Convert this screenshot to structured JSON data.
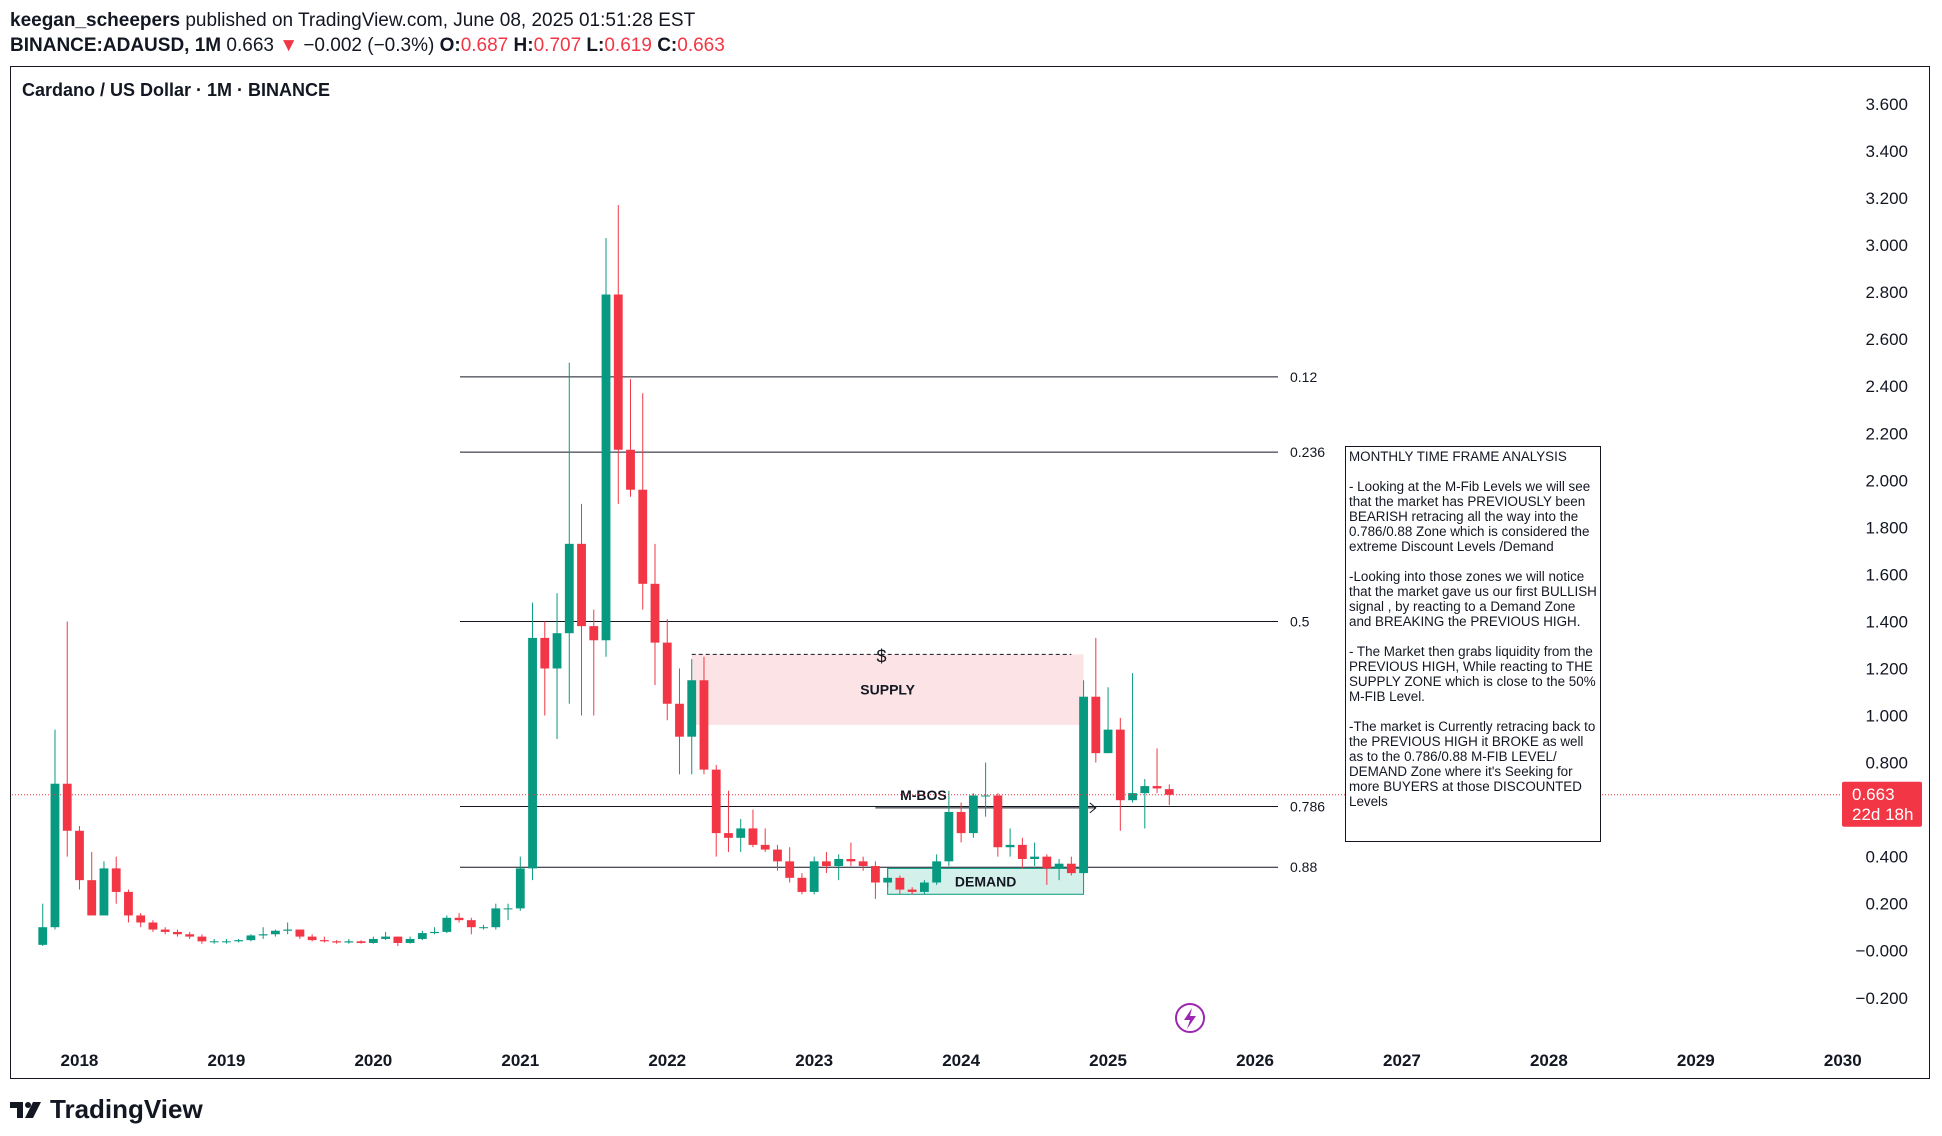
{
  "header": {
    "author": "keegan_scheepers",
    "published": "published on TradingView.com, June 08, 2025 01:51:28 EST",
    "symbol": "BINANCE:ADAUSD, 1M",
    "last": "0.663",
    "change_arrow": "▼",
    "change": "−0.002 (−0.3%)",
    "open_label": "O:",
    "open": "0.687",
    "high_label": "H:",
    "high": "0.707",
    "low_label": "L:",
    "low": "0.619",
    "close_label": "C:",
    "close": "0.663"
  },
  "footer": {
    "brand": "TradingView",
    "logo_icon": "tradingview-logo-icon"
  },
  "colors": {
    "up": "#089981",
    "down": "#f23645",
    "supply": "#fce4e6",
    "demand": "#d4f0ea",
    "price_line": "#f23645"
  },
  "chart_data": {
    "type": "candlestick",
    "title": "Cardano / US Dollar · 1M · BINANCE",
    "x_ticks": [
      "2018",
      "2019",
      "2020",
      "2021",
      "2022",
      "2023",
      "2024",
      "2025",
      "2026",
      "2027",
      "2028",
      "2029",
      "2030"
    ],
    "y_ticks": [
      "3.600",
      "3.400",
      "3.200",
      "3.000",
      "2.800",
      "2.600",
      "2.400",
      "2.200",
      "2.000",
      "1.800",
      "1.600",
      "1.400",
      "1.200",
      "1.000",
      "0.800",
      "0.400",
      "0.200",
      "−0.000",
      "−0.200"
    ],
    "ylim": [
      -0.25,
      3.7
    ],
    "xlim": [
      "2017-07",
      "2030-06"
    ],
    "last_price": {
      "value": 0.663,
      "label": "0.663",
      "countdown": "22d 18h"
    },
    "fib_levels": [
      {
        "label": "0.12",
        "value": 2.44
      },
      {
        "label": "0.236",
        "value": 2.12
      },
      {
        "label": "0.5",
        "value": 1.4
      },
      {
        "label": "0.786",
        "value": 0.613
      },
      {
        "label": "0.88",
        "value": 0.355
      }
    ],
    "zones": [
      {
        "label": "SUPPLY",
        "type": "supply",
        "from": "2022-03",
        "to": "2024-11",
        "low": 0.96,
        "high": 1.26
      },
      {
        "label": "DEMAND",
        "type": "demand",
        "from": "2023-07",
        "to": "2024-11",
        "low": 0.24,
        "high": 0.35
      }
    ],
    "annotations": [
      {
        "label": "M-BOS",
        "from": "2023-06",
        "to": "2024-12",
        "value": 0.65
      },
      {
        "label": "$",
        "from": "2022-03",
        "to": "2024-10",
        "value": 1.26
      }
    ],
    "candles": [
      {
        "d": "2017-10",
        "o": 0.025,
        "h": 0.2,
        "l": 0.02,
        "c": 0.1
      },
      {
        "d": "2017-11",
        "o": 0.1,
        "h": 0.94,
        "l": 0.09,
        "c": 0.71
      },
      {
        "d": "2017-12",
        "o": 0.71,
        "h": 1.4,
        "l": 0.4,
        "c": 0.51
      },
      {
        "d": "2018-01",
        "o": 0.51,
        "h": 0.53,
        "l": 0.26,
        "c": 0.3
      },
      {
        "d": "2018-02",
        "o": 0.3,
        "h": 0.42,
        "l": 0.15,
        "c": 0.15
      },
      {
        "d": "2018-03",
        "o": 0.15,
        "h": 0.38,
        "l": 0.15,
        "c": 0.35
      },
      {
        "d": "2018-04",
        "o": 0.35,
        "h": 0.4,
        "l": 0.2,
        "c": 0.25
      },
      {
        "d": "2018-05",
        "o": 0.25,
        "h": 0.26,
        "l": 0.12,
        "c": 0.15
      },
      {
        "d": "2018-06",
        "o": 0.15,
        "h": 0.16,
        "l": 0.1,
        "c": 0.12
      },
      {
        "d": "2018-07",
        "o": 0.12,
        "h": 0.13,
        "l": 0.08,
        "c": 0.09
      },
      {
        "d": "2018-08",
        "o": 0.09,
        "h": 0.1,
        "l": 0.07,
        "c": 0.08
      },
      {
        "d": "2018-09",
        "o": 0.08,
        "h": 0.09,
        "l": 0.06,
        "c": 0.07
      },
      {
        "d": "2018-10",
        "o": 0.07,
        "h": 0.08,
        "l": 0.05,
        "c": 0.06
      },
      {
        "d": "2018-11",
        "o": 0.06,
        "h": 0.07,
        "l": 0.03,
        "c": 0.04
      },
      {
        "d": "2018-12",
        "o": 0.04,
        "h": 0.05,
        "l": 0.03,
        "c": 0.04
      },
      {
        "d": "2019-01",
        "o": 0.04,
        "h": 0.05,
        "l": 0.03,
        "c": 0.04
      },
      {
        "d": "2019-02",
        "o": 0.04,
        "h": 0.05,
        "l": 0.035,
        "c": 0.045
      },
      {
        "d": "2019-03",
        "o": 0.045,
        "h": 0.07,
        "l": 0.04,
        "c": 0.065
      },
      {
        "d": "2019-04",
        "o": 0.065,
        "h": 0.1,
        "l": 0.05,
        "c": 0.07
      },
      {
        "d": "2019-05",
        "o": 0.07,
        "h": 0.09,
        "l": 0.06,
        "c": 0.085
      },
      {
        "d": "2019-06",
        "o": 0.085,
        "h": 0.12,
        "l": 0.07,
        "c": 0.09
      },
      {
        "d": "2019-07",
        "o": 0.09,
        "h": 0.09,
        "l": 0.05,
        "c": 0.06
      },
      {
        "d": "2019-08",
        "o": 0.06,
        "h": 0.07,
        "l": 0.04,
        "c": 0.045
      },
      {
        "d": "2019-09",
        "o": 0.045,
        "h": 0.06,
        "l": 0.035,
        "c": 0.04
      },
      {
        "d": "2019-10",
        "o": 0.04,
        "h": 0.045,
        "l": 0.03,
        "c": 0.035
      },
      {
        "d": "2019-11",
        "o": 0.035,
        "h": 0.05,
        "l": 0.03,
        "c": 0.04
      },
      {
        "d": "2019-12",
        "o": 0.04,
        "h": 0.045,
        "l": 0.03,
        "c": 0.033
      },
      {
        "d": "2020-01",
        "o": 0.033,
        "h": 0.06,
        "l": 0.03,
        "c": 0.05
      },
      {
        "d": "2020-02",
        "o": 0.05,
        "h": 0.08,
        "l": 0.045,
        "c": 0.06
      },
      {
        "d": "2020-03",
        "o": 0.06,
        "h": 0.06,
        "l": 0.02,
        "c": 0.033
      },
      {
        "d": "2020-04",
        "o": 0.033,
        "h": 0.06,
        "l": 0.03,
        "c": 0.05
      },
      {
        "d": "2020-05",
        "o": 0.05,
        "h": 0.085,
        "l": 0.045,
        "c": 0.075
      },
      {
        "d": "2020-06",
        "o": 0.075,
        "h": 0.1,
        "l": 0.07,
        "c": 0.08
      },
      {
        "d": "2020-07",
        "o": 0.08,
        "h": 0.15,
        "l": 0.075,
        "c": 0.14
      },
      {
        "d": "2020-08",
        "o": 0.14,
        "h": 0.16,
        "l": 0.12,
        "c": 0.13
      },
      {
        "d": "2020-09",
        "o": 0.13,
        "h": 0.14,
        "l": 0.07,
        "c": 0.1
      },
      {
        "d": "2020-10",
        "o": 0.1,
        "h": 0.11,
        "l": 0.09,
        "c": 0.1
      },
      {
        "d": "2020-11",
        "o": 0.1,
        "h": 0.2,
        "l": 0.09,
        "c": 0.18
      },
      {
        "d": "2020-12",
        "o": 0.18,
        "h": 0.2,
        "l": 0.13,
        "c": 0.18
      },
      {
        "d": "2021-01",
        "o": 0.18,
        "h": 0.4,
        "l": 0.17,
        "c": 0.35
      },
      {
        "d": "2021-02",
        "o": 0.35,
        "h": 1.48,
        "l": 0.3,
        "c": 1.33
      },
      {
        "d": "2021-03",
        "o": 1.33,
        "h": 1.4,
        "l": 1.0,
        "c": 1.2
      },
      {
        "d": "2021-04",
        "o": 1.2,
        "h": 1.52,
        "l": 0.9,
        "c": 1.35
      },
      {
        "d": "2021-05",
        "o": 1.35,
        "h": 2.5,
        "l": 1.05,
        "c": 1.73
      },
      {
        "d": "2021-06",
        "o": 1.73,
        "h": 1.9,
        "l": 1.0,
        "c": 1.38
      },
      {
        "d": "2021-07",
        "o": 1.38,
        "h": 1.45,
        "l": 1.0,
        "c": 1.32
      },
      {
        "d": "2021-08",
        "o": 1.32,
        "h": 3.03,
        "l": 1.25,
        "c": 2.79
      },
      {
        "d": "2021-09",
        "o": 2.79,
        "h": 3.17,
        "l": 1.9,
        "c": 2.13
      },
      {
        "d": "2021-10",
        "o": 2.13,
        "h": 2.43,
        "l": 1.93,
        "c": 1.96
      },
      {
        "d": "2021-11",
        "o": 1.96,
        "h": 2.37,
        "l": 1.45,
        "c": 1.56
      },
      {
        "d": "2021-12",
        "o": 1.56,
        "h": 1.73,
        "l": 1.13,
        "c": 1.31
      },
      {
        "d": "2022-01",
        "o": 1.31,
        "h": 1.41,
        "l": 0.98,
        "c": 1.05
      },
      {
        "d": "2022-02",
        "o": 1.05,
        "h": 1.2,
        "l": 0.75,
        "c": 0.91
      },
      {
        "d": "2022-03",
        "o": 0.91,
        "h": 1.24,
        "l": 0.75,
        "c": 1.15
      },
      {
        "d": "2022-04",
        "o": 1.15,
        "h": 1.25,
        "l": 0.75,
        "c": 0.77
      },
      {
        "d": "2022-05",
        "o": 0.77,
        "h": 0.79,
        "l": 0.4,
        "c": 0.5
      },
      {
        "d": "2022-06",
        "o": 0.5,
        "h": 0.68,
        "l": 0.42,
        "c": 0.48
      },
      {
        "d": "2022-07",
        "o": 0.48,
        "h": 0.56,
        "l": 0.42,
        "c": 0.52
      },
      {
        "d": "2022-08",
        "o": 0.52,
        "h": 0.6,
        "l": 0.44,
        "c": 0.45
      },
      {
        "d": "2022-09",
        "o": 0.45,
        "h": 0.52,
        "l": 0.42,
        "c": 0.43
      },
      {
        "d": "2022-10",
        "o": 0.43,
        "h": 0.45,
        "l": 0.34,
        "c": 0.38
      },
      {
        "d": "2022-11",
        "o": 0.38,
        "h": 0.44,
        "l": 0.29,
        "c": 0.31
      },
      {
        "d": "2022-12",
        "o": 0.31,
        "h": 0.33,
        "l": 0.24,
        "c": 0.25
      },
      {
        "d": "2023-01",
        "o": 0.25,
        "h": 0.4,
        "l": 0.24,
        "c": 0.38
      },
      {
        "d": "2023-02",
        "o": 0.38,
        "h": 0.42,
        "l": 0.33,
        "c": 0.36
      },
      {
        "d": "2023-03",
        "o": 0.36,
        "h": 0.41,
        "l": 0.3,
        "c": 0.39
      },
      {
        "d": "2023-04",
        "o": 0.39,
        "h": 0.46,
        "l": 0.36,
        "c": 0.38
      },
      {
        "d": "2023-05",
        "o": 0.38,
        "h": 0.4,
        "l": 0.34,
        "c": 0.36
      },
      {
        "d": "2023-06",
        "o": 0.36,
        "h": 0.38,
        "l": 0.22,
        "c": 0.29
      },
      {
        "d": "2023-07",
        "o": 0.29,
        "h": 0.35,
        "l": 0.27,
        "c": 0.31
      },
      {
        "d": "2023-08",
        "o": 0.31,
        "h": 0.32,
        "l": 0.24,
        "c": 0.26
      },
      {
        "d": "2023-09",
        "o": 0.26,
        "h": 0.27,
        "l": 0.24,
        "c": 0.25
      },
      {
        "d": "2023-10",
        "o": 0.25,
        "h": 0.3,
        "l": 0.24,
        "c": 0.29
      },
      {
        "d": "2023-11",
        "o": 0.29,
        "h": 0.41,
        "l": 0.28,
        "c": 0.38
      },
      {
        "d": "2023-12",
        "o": 0.38,
        "h": 0.68,
        "l": 0.36,
        "c": 0.59
      },
      {
        "d": "2024-01",
        "o": 0.59,
        "h": 0.63,
        "l": 0.46,
        "c": 0.5
      },
      {
        "d": "2024-02",
        "o": 0.5,
        "h": 0.67,
        "l": 0.48,
        "c": 0.66
      },
      {
        "d": "2024-03",
        "o": 0.66,
        "h": 0.8,
        "l": 0.57,
        "c": 0.66
      },
      {
        "d": "2024-04",
        "o": 0.66,
        "h": 0.67,
        "l": 0.4,
        "c": 0.44
      },
      {
        "d": "2024-05",
        "o": 0.44,
        "h": 0.52,
        "l": 0.4,
        "c": 0.45
      },
      {
        "d": "2024-06",
        "o": 0.45,
        "h": 0.48,
        "l": 0.35,
        "c": 0.39
      },
      {
        "d": "2024-07",
        "o": 0.39,
        "h": 0.46,
        "l": 0.36,
        "c": 0.4
      },
      {
        "d": "2024-08",
        "o": 0.4,
        "h": 0.41,
        "l": 0.28,
        "c": 0.35
      },
      {
        "d": "2024-09",
        "o": 0.35,
        "h": 0.39,
        "l": 0.3,
        "c": 0.37
      },
      {
        "d": "2024-10",
        "o": 0.37,
        "h": 0.4,
        "l": 0.32,
        "c": 0.33
      },
      {
        "d": "2024-11",
        "o": 0.33,
        "h": 1.15,
        "l": 0.32,
        "c": 1.08
      },
      {
        "d": "2024-12",
        "o": 1.08,
        "h": 1.33,
        "l": 0.8,
        "c": 0.84
      },
      {
        "d": "2025-01",
        "o": 0.84,
        "h": 1.12,
        "l": 0.84,
        "c": 0.94
      },
      {
        "d": "2025-02",
        "o": 0.94,
        "h": 0.99,
        "l": 0.51,
        "c": 0.64
      },
      {
        "d": "2025-03",
        "o": 0.64,
        "h": 1.18,
        "l": 0.63,
        "c": 0.67
      },
      {
        "d": "2025-04",
        "o": 0.67,
        "h": 0.73,
        "l": 0.52,
        "c": 0.7
      },
      {
        "d": "2025-05",
        "o": 0.7,
        "h": 0.86,
        "l": 0.67,
        "c": 0.69
      },
      {
        "d": "2025-06",
        "o": 0.687,
        "h": 0.707,
        "l": 0.619,
        "c": 0.663
      }
    ]
  },
  "analysis": {
    "text": "MONTHLY TIME FRAME ANALYSIS\n\n- Looking at the M-Fib Levels we will see that the market has PREVIOUSLY been BEARISH retracing all the way into the 0.786/0.88 Zone which is considered the extreme Discount Levels /Demand\n\n-Looking into those zones we will notice that the market gave us our first BULLISH signal , by reacting to a Demand Zone and BREAKING the PREVIOUS HIGH.\n\n- The Market then grabs liquidity from the PREVIOUS HIGH, While reacting to THE SUPPLY ZONE which is close to the 50% M-FIB Level.\n\n-The market is Currently retracing back to the PREVIOUS HIGH it BROKE as well as to the 0.786/0.88 M-FIB LEVEL/ DEMAND Zone where it's Seeking for more BUYERS at those DISCOUNTED Levels"
  }
}
